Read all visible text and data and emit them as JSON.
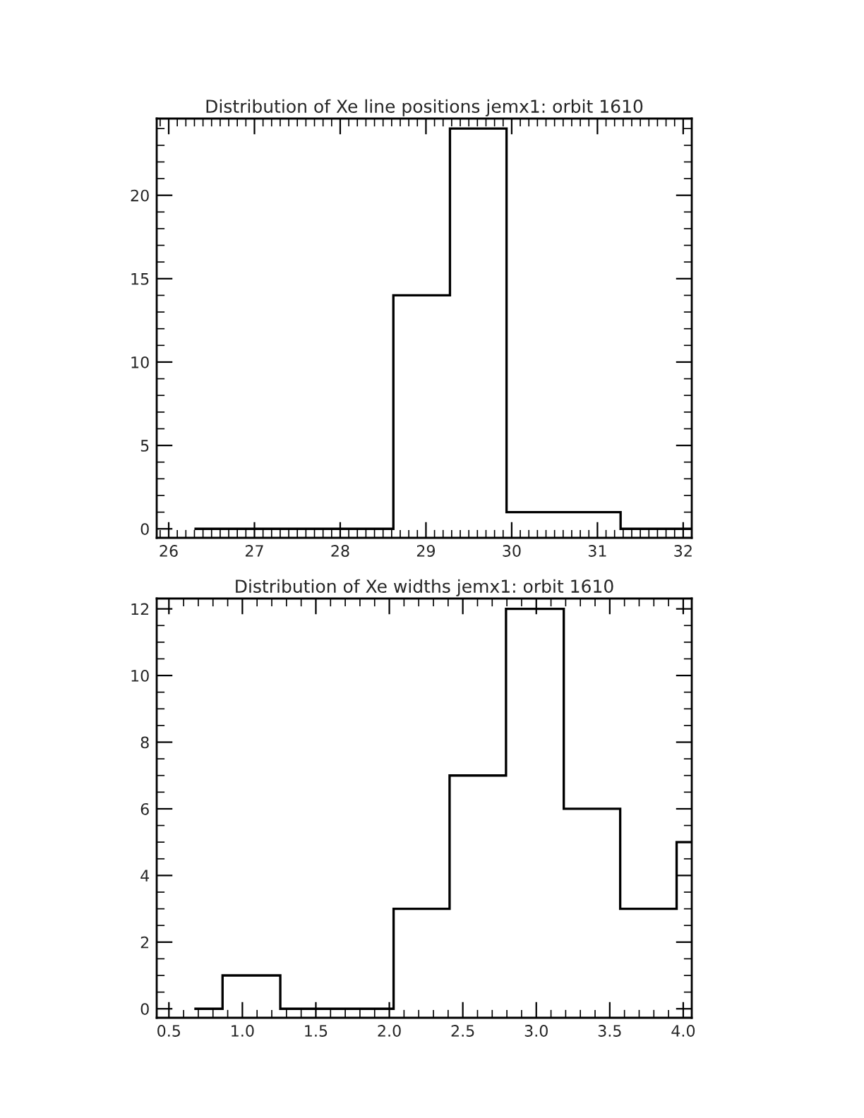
{
  "chart_data": [
    {
      "type": "histogram",
      "title": "Distribution of Xe line positions jemx1: orbit 1610",
      "bins": [
        26.3,
        28.62,
        29.28,
        29.94,
        31.27,
        32.1
      ],
      "values": [
        0,
        14,
        24,
        1,
        0
      ],
      "color": "#000000",
      "xlim": [
        25.86,
        32.1
      ],
      "ylim": [
        -0.54,
        24.6
      ],
      "xticks": [
        {
          "value": 25.9,
          "label": null
        },
        26,
        {
          "value": 26.1,
          "label": null
        },
        {
          "value": 26.2,
          "label": null
        },
        {
          "value": 26.3,
          "label": null
        },
        {
          "value": 26.4,
          "label": null
        },
        {
          "value": 26.5,
          "label": null
        },
        {
          "value": 26.6,
          "label": null
        },
        {
          "value": 26.7,
          "label": null
        },
        {
          "value": 26.8,
          "label": null
        },
        {
          "value": 26.9,
          "label": null
        },
        27,
        {
          "value": 27.1,
          "label": null
        },
        {
          "value": 27.2,
          "label": null
        },
        {
          "value": 27.3,
          "label": null
        },
        {
          "value": 27.4,
          "label": null
        },
        {
          "value": 27.5,
          "label": null
        },
        {
          "value": 27.6,
          "label": null
        },
        {
          "value": 27.7,
          "label": null
        },
        {
          "value": 27.8,
          "label": null
        },
        {
          "value": 27.9,
          "label": null
        },
        28,
        {
          "value": 28.1,
          "label": null
        },
        {
          "value": 28.2,
          "label": null
        },
        {
          "value": 28.3,
          "label": null
        },
        {
          "value": 28.4,
          "label": null
        },
        {
          "value": 28.5,
          "label": null
        },
        {
          "value": 28.6,
          "label": null
        },
        {
          "value": 28.7,
          "label": null
        },
        {
          "value": 28.8,
          "label": null
        },
        {
          "value": 28.9,
          "label": null
        },
        29,
        {
          "value": 29.1,
          "label": null
        },
        {
          "value": 29.2,
          "label": null
        },
        {
          "value": 29.3,
          "label": null
        },
        {
          "value": 29.4,
          "label": null
        },
        {
          "value": 29.5,
          "label": null
        },
        {
          "value": 29.6,
          "label": null
        },
        {
          "value": 29.7,
          "label": null
        },
        {
          "value": 29.8,
          "label": null
        },
        {
          "value": 29.9,
          "label": null
        },
        30,
        {
          "value": 30.1,
          "label": null
        },
        {
          "value": 30.2,
          "label": null
        },
        {
          "value": 30.3,
          "label": null
        },
        {
          "value": 30.4,
          "label": null
        },
        {
          "value": 30.5,
          "label": null
        },
        {
          "value": 30.6,
          "label": null
        },
        {
          "value": 30.7,
          "label": null
        },
        {
          "value": 30.8,
          "label": null
        },
        {
          "value": 30.9,
          "label": null
        },
        31,
        {
          "value": 31.1,
          "label": null
        },
        {
          "value": 31.2,
          "label": null
        },
        {
          "value": 31.3,
          "label": null
        },
        {
          "value": 31.4,
          "label": null
        },
        {
          "value": 31.5,
          "label": null
        },
        {
          "value": 31.6,
          "label": null
        },
        {
          "value": 31.7,
          "label": null
        },
        {
          "value": 31.8,
          "label": null
        },
        {
          "value": 31.9,
          "label": null
        },
        32
      ],
      "yticks": [
        0,
        {
          "value": 1,
          "label": null
        },
        {
          "value": 2,
          "label": null
        },
        {
          "value": 3,
          "label": null
        },
        {
          "value": 4,
          "label": null
        },
        5,
        {
          "value": 6,
          "label": null
        },
        {
          "value": 7,
          "label": null
        },
        {
          "value": 8,
          "label": null
        },
        {
          "value": 9,
          "label": null
        },
        10,
        {
          "value": 11,
          "label": null
        },
        {
          "value": 12,
          "label": null
        },
        {
          "value": 13,
          "label": null
        },
        {
          "value": 14,
          "label": null
        },
        15,
        {
          "value": 16,
          "label": null
        },
        {
          "value": 17,
          "label": null
        },
        {
          "value": 18,
          "label": null
        },
        {
          "value": 19,
          "label": null
        },
        20,
        {
          "value": 21,
          "label": null
        },
        {
          "value": 22,
          "label": null
        },
        {
          "value": 23,
          "label": null
        },
        {
          "value": 24,
          "label": null
        }
      ],
      "grid": false
    },
    {
      "type": "histogram",
      "title": "Distribution of Xe widths jemx1: orbit 1610",
      "bins": [
        0.673,
        0.865,
        1.258,
        2.029,
        2.41,
        2.794,
        3.187,
        3.571,
        3.955,
        4.058
      ],
      "values": [
        0,
        1,
        0,
        3,
        7,
        12,
        6,
        3,
        5
      ],
      "color": "#000000",
      "xlim": [
        0.417,
        4.058
      ],
      "ylim": [
        -0.27,
        12.31
      ],
      "xticks": [
        0.5,
        {
          "value": 0.6,
          "label": null
        },
        {
          "value": 0.7,
          "label": null
        },
        {
          "value": 0.8,
          "label": null
        },
        {
          "value": 0.9,
          "label": null
        },
        {
          "value": 1.0,
          "label": "1.0"
        },
        {
          "value": 1.1,
          "label": null
        },
        {
          "value": 1.2,
          "label": null
        },
        {
          "value": 1.3,
          "label": null
        },
        {
          "value": 1.4,
          "label": null
        },
        1.5,
        {
          "value": 1.6,
          "label": null
        },
        {
          "value": 1.7,
          "label": null
        },
        {
          "value": 1.8,
          "label": null
        },
        {
          "value": 1.9,
          "label": null
        },
        {
          "value": 2.0,
          "label": "2.0"
        },
        {
          "value": 2.1,
          "label": null
        },
        {
          "value": 2.2,
          "label": null
        },
        {
          "value": 2.3,
          "label": null
        },
        {
          "value": 2.4,
          "label": null
        },
        2.5,
        {
          "value": 2.6,
          "label": null
        },
        {
          "value": 2.7,
          "label": null
        },
        {
          "value": 2.8,
          "label": null
        },
        {
          "value": 2.9,
          "label": null
        },
        {
          "value": 3.0,
          "label": "3.0"
        },
        {
          "value": 3.1,
          "label": null
        },
        {
          "value": 3.2,
          "label": null
        },
        {
          "value": 3.3,
          "label": null
        },
        {
          "value": 3.4,
          "label": null
        },
        3.5,
        {
          "value": 3.6,
          "label": null
        },
        {
          "value": 3.7,
          "label": null
        },
        {
          "value": 3.8,
          "label": null
        },
        {
          "value": 3.9,
          "label": null
        },
        {
          "value": 4.0,
          "label": "4.0"
        }
      ],
      "yticks": [
        0,
        {
          "value": 0.5,
          "label": null
        },
        {
          "value": 1,
          "label": null
        },
        {
          "value": 1.5,
          "label": null
        },
        2,
        {
          "value": 2.5,
          "label": null
        },
        {
          "value": 3,
          "label": null
        },
        {
          "value": 3.5,
          "label": null
        },
        4,
        {
          "value": 4.5,
          "label": null
        },
        {
          "value": 5,
          "label": null
        },
        {
          "value": 5.5,
          "label": null
        },
        6,
        {
          "value": 6.5,
          "label": null
        },
        {
          "value": 7,
          "label": null
        },
        {
          "value": 7.5,
          "label": null
        },
        8,
        {
          "value": 8.5,
          "label": null
        },
        {
          "value": 9,
          "label": null
        },
        {
          "value": 9.5,
          "label": null
        },
        10,
        {
          "value": 10.5,
          "label": null
        },
        {
          "value": 11,
          "label": null
        },
        {
          "value": 11.5,
          "label": null
        },
        12
      ],
      "grid": false
    }
  ]
}
